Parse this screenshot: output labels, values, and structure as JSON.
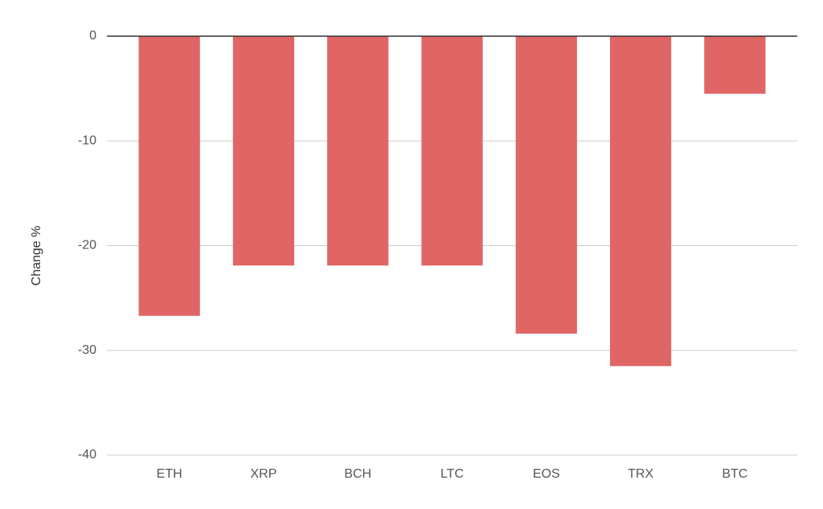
{
  "chart_data": {
    "type": "bar",
    "ylabel": "Change %",
    "categories": [
      "ETH",
      "XRP",
      "BCH",
      "LTC",
      "EOS",
      "TRX",
      "BTC"
    ],
    "values": [
      -26.7,
      -21.9,
      -21.9,
      -21.9,
      -28.4,
      -31.5,
      -5.5
    ],
    "color": "#e06666",
    "ylim": [
      -40,
      0
    ],
    "yticks": [
      0,
      -10,
      -20,
      -30,
      -40
    ],
    "grid": true
  }
}
